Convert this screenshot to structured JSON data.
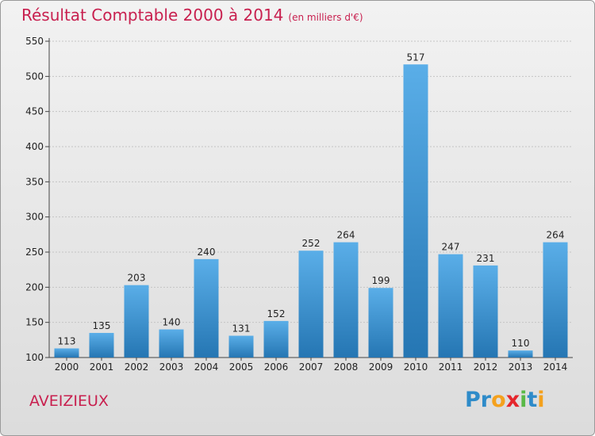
{
  "header": {
    "title": "Résultat Comptable 2000 à 2014",
    "subtitle": "(en milliers d'€)"
  },
  "commune": "AVEIZIEUX",
  "brand": {
    "text": "Proxiti",
    "colors": [
      "#2e8bc9",
      "#2e8bc9",
      "#f4a11d",
      "#e5262c",
      "#59b947",
      "#2e8bc9",
      "#f4a11d"
    ]
  },
  "colors": {
    "title": "#c8204f",
    "bar_top": "#5aaee8",
    "bar_bottom": "#2576b3"
  },
  "chart_data": {
    "type": "bar",
    "title": "Résultat Comptable 2000 à 2014",
    "xlabel": "",
    "ylabel": "",
    "categories": [
      "2000",
      "2001",
      "2002",
      "2003",
      "2004",
      "2005",
      "2006",
      "2007",
      "2008",
      "2009",
      "2010",
      "2011",
      "2012",
      "2013",
      "2014"
    ],
    "values": [
      113,
      135,
      203,
      140,
      240,
      131,
      152,
      252,
      264,
      199,
      517,
      247,
      231,
      110,
      264
    ],
    "ylim": [
      100,
      550
    ],
    "yticks": [
      100,
      150,
      200,
      250,
      300,
      350,
      400,
      450,
      500,
      550
    ],
    "grid": true,
    "data_labels": true
  }
}
